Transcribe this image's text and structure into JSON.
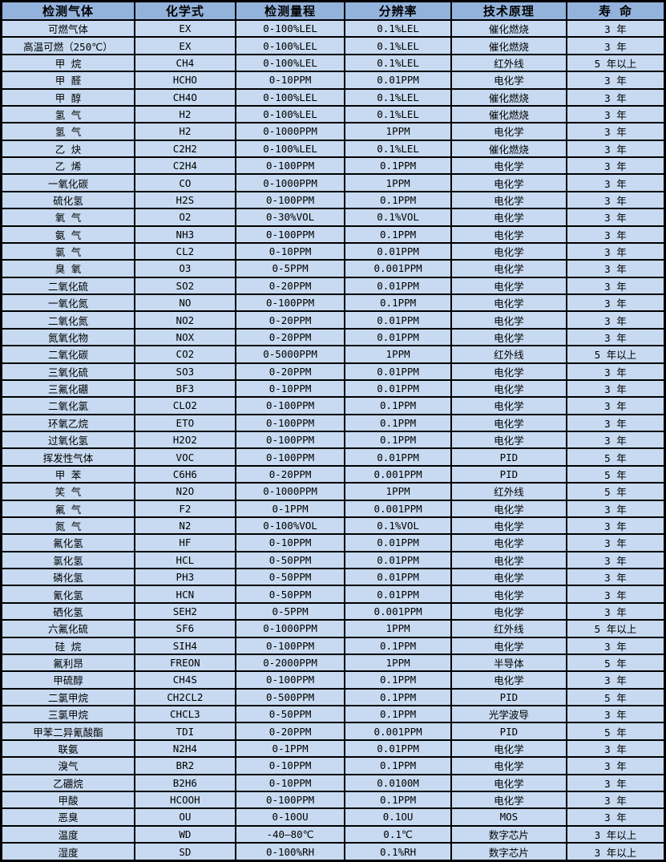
{
  "table": {
    "title": "gas-detector-specification-table",
    "colors": {
      "header_bg": "#94b3dc",
      "row_bg": "#c7daf1",
      "border": "#000000",
      "text": "#000000"
    },
    "columns": [
      "检测气体",
      "化学式",
      "检测量程",
      "分辨率",
      "技术原理",
      "寿 命"
    ],
    "column_keys": [
      "gas",
      "formula",
      "range",
      "resolution",
      "principle",
      "lifespan"
    ],
    "column_widths_pct": [
      20.1,
      15.2,
      16.5,
      16.0,
      17.4,
      14.8
    ],
    "rows": [
      [
        "可燃气体",
        "EX",
        "0-100%LEL",
        "0.1%LEL",
        "催化燃烧",
        "3 年"
      ],
      [
        "高温可燃（250℃）",
        "EX",
        "0-100%LEL",
        "0.1%LEL",
        "催化燃烧",
        "3 年"
      ],
      [
        "甲 烷",
        "CH4",
        "0-100%LEL",
        "0.1%LEL",
        "红外线",
        "5 年以上"
      ],
      [
        "甲 醛",
        "HCHO",
        "0-10PPM",
        "0.01PPM",
        "电化学",
        "3 年"
      ],
      [
        "甲 醇",
        "CH4O",
        "0-100%LEL",
        "0.1%LEL",
        "催化燃烧",
        "3 年"
      ],
      [
        "氢 气",
        "H2",
        "0-100%LEL",
        "0.1%LEL",
        "催化燃烧",
        "3 年"
      ],
      [
        "氢 气",
        "H2",
        "0-1000PPM",
        "1PPM",
        "电化学",
        "3 年"
      ],
      [
        "乙 炔",
        "C2H2",
        "0-100%LEL",
        "0.1%LEL",
        "催化燃烧",
        "3 年"
      ],
      [
        "乙 烯",
        "C2H4",
        "0-100PPM",
        "0.1PPM",
        "电化学",
        "3 年"
      ],
      [
        "一氧化碳",
        "CO",
        "0-1000PPM",
        "1PPM",
        "电化学",
        "3 年"
      ],
      [
        "硫化氢",
        "H2S",
        "0-100PPM",
        "0.1PPM",
        "电化学",
        "3 年"
      ],
      [
        "氧 气",
        "O2",
        "0-30%VOL",
        "0.1%VOL",
        "电化学",
        "3 年"
      ],
      [
        "氨 气",
        "NH3",
        "0-100PPM",
        "0.1PPM",
        "电化学",
        "3 年"
      ],
      [
        "氯 气",
        "CL2",
        "0-10PPM",
        "0.01PPM",
        "电化学",
        "3 年"
      ],
      [
        "臭 氧",
        "O3",
        "0-5PPM",
        "0.001PPM",
        "电化学",
        "3 年"
      ],
      [
        "二氧化硫",
        "SO2",
        "0-20PPM",
        "0.01PPM",
        "电化学",
        "3 年"
      ],
      [
        "一氧化氮",
        "NO",
        "0-100PPM",
        "0.1PPM",
        "电化学",
        "3 年"
      ],
      [
        "二氧化氮",
        "NO2",
        "0-20PPM",
        "0.01PPM",
        "电化学",
        "3 年"
      ],
      [
        "氮氧化物",
        "NOX",
        "0-20PPM",
        "0.01PPM",
        "电化学",
        "3 年"
      ],
      [
        "二氧化碳",
        "CO2",
        "0-5000PPM",
        "1PPM",
        "红外线",
        "5 年以上"
      ],
      [
        "三氧化硫",
        "SO3",
        "0-20PPM",
        "0.01PPM",
        "电化学",
        "3 年"
      ],
      [
        "三氟化硼",
        "BF3",
        "0-10PPM",
        "0.01PPM",
        "电化学",
        "3 年"
      ],
      [
        "二氧化氯",
        "CLO2",
        "0-100PPM",
        "0.1PPM",
        "电化学",
        "3 年"
      ],
      [
        "环氧乙烷",
        "ETO",
        "0-100PPM",
        "0.1PPM",
        "电化学",
        "3 年"
      ],
      [
        "过氧化氢",
        "H2O2",
        "0-100PPM",
        "0.1PPM",
        "电化学",
        "3 年"
      ],
      [
        "挥发性气体",
        "VOC",
        "0-100PPM",
        "0.01PPM",
        "PID",
        "5 年"
      ],
      [
        "甲 苯",
        "C6H6",
        "0-20PPM",
        "0.001PPM",
        "PID",
        "5 年"
      ],
      [
        "笑 气",
        "N2O",
        "0-1000PPM",
        "1PPM",
        "红外线",
        "5 年"
      ],
      [
        "氟 气",
        "F2",
        "0-1PPM",
        "0.001PPM",
        "电化学",
        "3 年"
      ],
      [
        "氮 气",
        "N2",
        "0-100%VOL",
        "0.1%VOL",
        "电化学",
        "3 年"
      ],
      [
        "氟化氢",
        "HF",
        "0-10PPM",
        "0.01PPM",
        "电化学",
        "3 年"
      ],
      [
        "氯化氢",
        "HCL",
        "0-50PPM",
        "0.01PPM",
        "电化学",
        "3 年"
      ],
      [
        "磷化氢",
        "PH3",
        "0-50PPM",
        "0.01PPM",
        "电化学",
        "3 年"
      ],
      [
        "氰化氢",
        "HCN",
        "0-50PPM",
        "0.01PPM",
        "电化学",
        "3 年"
      ],
      [
        "硒化氢",
        "SEH2",
        "0-5PPM",
        "0.001PPM",
        "电化学",
        "3 年"
      ],
      [
        "六氟化硫",
        "SF6",
        "0-1000PPM",
        "1PPM",
        "红外线",
        "5 年以上"
      ],
      [
        "硅 烷",
        "SIH4",
        "0-100PPM",
        "0.1PPM",
        "电化学",
        "3 年"
      ],
      [
        "氟利昂",
        "FREON",
        "0-2000PPM",
        "1PPM",
        "半导体",
        "5 年"
      ],
      [
        "甲硫醇",
        "CH4S",
        "0-100PPM",
        "0.1PPM",
        "电化学",
        "3 年"
      ],
      [
        "二氯甲烷",
        "CH2CL2",
        "0-500PPM",
        "0.1PPM",
        "PID",
        "5 年"
      ],
      [
        "三氯甲烷",
        "CHCL3",
        "0-50PPM",
        "0.1PPM",
        "光学波导",
        "3 年"
      ],
      [
        "甲苯二异氰酸酯",
        "TDI",
        "0-20PPM",
        "0.001PPM",
        "PID",
        "5 年"
      ],
      [
        "联氨",
        "N2H4",
        "0-1PPM",
        "0.01PPM",
        "电化学",
        "3 年"
      ],
      [
        "溴气",
        "BR2",
        "0-10PPM",
        "0.1PPM",
        "电化学",
        "3 年"
      ],
      [
        "乙硼烷",
        "B2H6",
        "0-10PPM",
        "0.0100M",
        "电化学",
        "3 年"
      ],
      [
        "甲酸",
        "HCOOH",
        "0-100PPM",
        "0.1PPM",
        "电化学",
        "3 年"
      ],
      [
        "恶臭",
        "OU",
        "0-10OU",
        "0.1OU",
        "MOS",
        "3 年"
      ],
      [
        "温度",
        "WD",
        "-40—80℃",
        "0.1℃",
        "数字芯片",
        "3 年以上"
      ],
      [
        "湿度",
        "SD",
        "0-100%RH",
        "0.1%RH",
        "数字芯片",
        "3 年以上"
      ]
    ]
  }
}
